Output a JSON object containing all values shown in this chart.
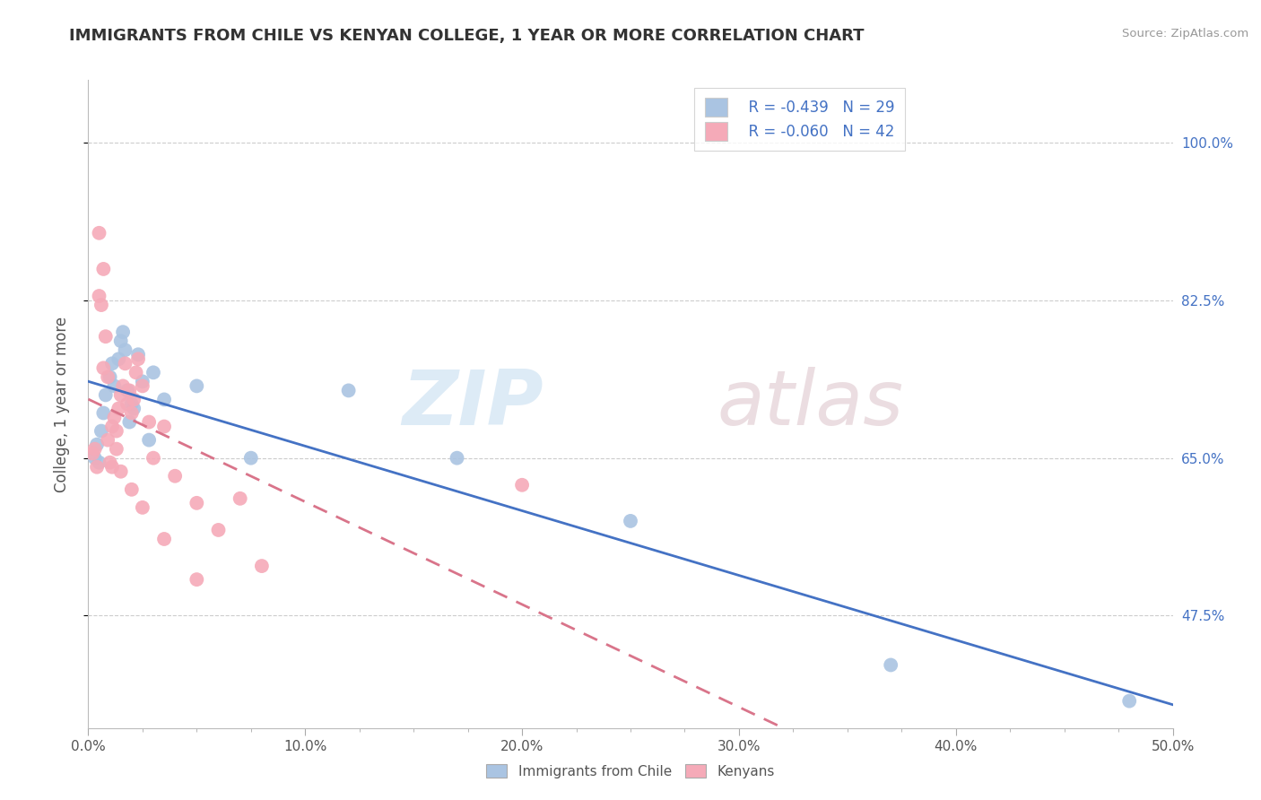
{
  "title": "IMMIGRANTS FROM CHILE VS KENYAN COLLEGE, 1 YEAR OR MORE CORRELATION CHART",
  "source": "Source: ZipAtlas.com",
  "xlabel_vals": [
    0.0,
    10.0,
    20.0,
    30.0,
    40.0,
    50.0
  ],
  "ylabel": "College, 1 year or more",
  "ylabel_ticks": [
    47.5,
    65.0,
    82.5,
    100.0
  ],
  "ylabel_tick_labels": [
    "47.5%",
    "65.0%",
    "82.5%",
    "100.0%"
  ],
  "xmin": 0.0,
  "xmax": 50.0,
  "ymin": 35.0,
  "ymax": 107.0,
  "legend_r_blue": "-0.439",
  "legend_n_blue": "29",
  "legend_r_pink": "-0.060",
  "legend_n_pink": "42",
  "blue_color": "#aac4e2",
  "pink_color": "#f5aab8",
  "blue_line_color": "#4472c4",
  "pink_line_color": "#d9748a",
  "watermark_zip": "ZIP",
  "watermark_atlas": "atlas",
  "blue_scatter_x": [
    0.3,
    0.4,
    0.5,
    0.6,
    0.7,
    0.8,
    1.0,
    1.1,
    1.2,
    1.4,
    1.5,
    1.7,
    1.8,
    2.0,
    2.1,
    2.3,
    2.5,
    3.0,
    3.5,
    5.0,
    7.5,
    12.0,
    17.0,
    25.0,
    37.0,
    48.0,
    1.6,
    1.9,
    2.8
  ],
  "blue_scatter_y": [
    65.0,
    66.5,
    64.5,
    68.0,
    70.0,
    72.0,
    74.0,
    75.5,
    73.0,
    76.0,
    78.0,
    77.0,
    72.5,
    71.0,
    70.5,
    76.5,
    73.5,
    74.5,
    71.5,
    73.0,
    65.0,
    72.5,
    65.0,
    58.0,
    42.0,
    38.0,
    79.0,
    69.0,
    67.0
  ],
  "pink_scatter_x": [
    0.2,
    0.3,
    0.4,
    0.5,
    0.6,
    0.7,
    0.8,
    0.9,
    1.0,
    1.1,
    1.2,
    1.3,
    1.4,
    1.5,
    1.6,
    1.7,
    1.8,
    1.9,
    2.0,
    2.1,
    2.2,
    2.3,
    2.5,
    2.8,
    3.0,
    3.5,
    4.0,
    5.0,
    6.0,
    7.0,
    8.0,
    0.5,
    0.7,
    0.9,
    1.1,
    1.3,
    1.5,
    2.0,
    2.5,
    3.5,
    5.0,
    20.0
  ],
  "pink_scatter_y": [
    65.5,
    66.0,
    64.0,
    90.0,
    82.0,
    86.0,
    78.5,
    74.0,
    64.5,
    68.5,
    69.5,
    68.0,
    70.5,
    72.0,
    73.0,
    75.5,
    71.0,
    72.5,
    70.0,
    71.5,
    74.5,
    76.0,
    73.0,
    69.0,
    65.0,
    68.5,
    63.0,
    60.0,
    57.0,
    60.5,
    53.0,
    83.0,
    75.0,
    67.0,
    64.0,
    66.0,
    63.5,
    61.5,
    59.5,
    56.0,
    51.5,
    62.0
  ]
}
